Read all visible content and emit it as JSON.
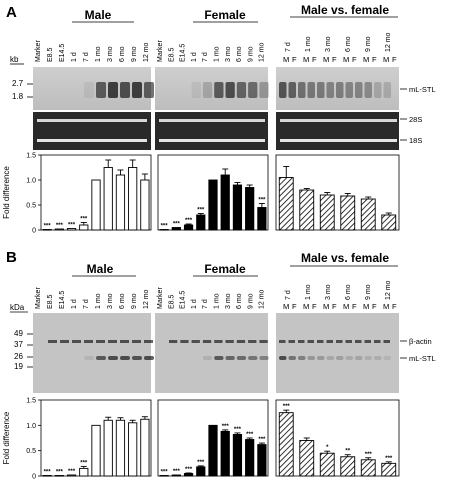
{
  "panels": [
    {
      "letter": "A",
      "size_unit": "kb",
      "size_markers": [
        "2.7",
        "1.8"
      ],
      "band_labels": [
        "mL-STL",
        "28S",
        "18S"
      ],
      "groups": [
        {
          "title": "Male",
          "lanes": [
            "Marker",
            "E8.5",
            "E14.5",
            "1 d",
            "7 d",
            "1 mo",
            "3 mo",
            "6 mo",
            "9 mo",
            "12 mo"
          ]
        },
        {
          "title": "Female",
          "lanes": [
            "Marker",
            "E8.5",
            "E14.5",
            "1 d",
            "7 d",
            "1 mo",
            "3 mo",
            "6 mo",
            "9 mo",
            "12 mo"
          ]
        },
        {
          "title": "Male vs. female",
          "ages": [
            "7 d",
            "1 mo",
            "3 mo",
            "6 mo",
            "9 mo",
            "12 mo"
          ],
          "sex_labels": [
            "M",
            "F"
          ]
        }
      ]
    },
    {
      "letter": "B",
      "size_unit": "kDa",
      "size_markers": [
        "49",
        "37",
        "26",
        "19"
      ],
      "band_labels": [
        "β-actin",
        "mL-STL"
      ],
      "groups": [
        {
          "title": "Male",
          "lanes": [
            "Marker",
            "E8.5",
            "E14.5",
            "1 d",
            "7 d",
            "1 mo",
            "3 mo",
            "6 mo",
            "9 mo",
            "12 mo"
          ]
        },
        {
          "title": "Female",
          "lanes": [
            "Marker",
            "E8.5",
            "E14.5",
            "1 d",
            "7 d",
            "1 mo",
            "3 mo",
            "6 mo",
            "9 mo",
            "12 mo"
          ]
        },
        {
          "title": "Male vs. female",
          "ages": [
            "7 d",
            "1 mo",
            "3 mo",
            "6 mo",
            "9 mo",
            "12 mo"
          ],
          "sex_labels": [
            "M",
            "F"
          ]
        }
      ]
    }
  ],
  "chart_data": [
    {
      "type": "bar",
      "panel": "A",
      "group": "Male",
      "fill": "white",
      "categories": [
        "E8.5",
        "E14.5",
        "1 d",
        "7 d",
        "1 mo",
        "3 mo",
        "6 mo",
        "9 mo",
        "12 mo"
      ],
      "values": [
        0.01,
        0.02,
        0.03,
        0.1,
        1.0,
        1.25,
        1.1,
        1.25,
        1.0
      ],
      "errors": [
        0.0,
        0.0,
        0.0,
        0.05,
        0.0,
        0.15,
        0.1,
        0.15,
        0.12
      ],
      "stars": [
        "***",
        "***",
        "***",
        "***",
        "",
        "",
        "",
        "",
        ""
      ],
      "ylabel": "Fold difference",
      "ylim": [
        0,
        1.5
      ],
      "yticks": [
        0,
        0.5,
        1.0,
        1.5
      ]
    },
    {
      "type": "bar",
      "panel": "A",
      "group": "Female",
      "fill": "black",
      "categories": [
        "E8.5",
        "E14.5",
        "1 d",
        "7 d",
        "1 mo",
        "3 mo",
        "6 mo",
        "9 mo",
        "12 mo"
      ],
      "values": [
        0.01,
        0.05,
        0.1,
        0.3,
        1.0,
        1.1,
        0.9,
        0.85,
        0.45
      ],
      "errors": [
        0.0,
        0.0,
        0.02,
        0.03,
        0.0,
        0.12,
        0.05,
        0.05,
        0.08
      ],
      "stars": [
        "***",
        "***",
        "***",
        "***",
        "",
        "",
        "",
        "",
        "***"
      ],
      "ylim": [
        0,
        1.5
      ]
    },
    {
      "type": "bar",
      "panel": "A",
      "group": "Male vs. female",
      "fill": "hatched",
      "categories": [
        "7 d",
        "1 mo",
        "3 mo",
        "6 mo",
        "9 mo",
        "12 mo"
      ],
      "values": [
        1.05,
        0.8,
        0.7,
        0.68,
        0.62,
        0.3
      ],
      "errors": [
        0.22,
        0.03,
        0.05,
        0.05,
        0.04,
        0.04
      ],
      "stars": [
        "",
        "",
        "",
        "",
        "",
        ""
      ],
      "ylim": [
        0,
        1.5
      ]
    },
    {
      "type": "bar",
      "panel": "B",
      "group": "Male",
      "fill": "white",
      "categories": [
        "E8.5",
        "E14.5",
        "1 d",
        "7 d",
        "1 mo",
        "3 mo",
        "6 mo",
        "9 mo",
        "12 mo"
      ],
      "values": [
        0.01,
        0.01,
        0.02,
        0.15,
        1.0,
        1.1,
        1.1,
        1.05,
        1.12
      ],
      "errors": [
        0.0,
        0.0,
        0.0,
        0.04,
        0.0,
        0.06,
        0.05,
        0.05,
        0.05
      ],
      "stars": [
        "***",
        "***",
        "***",
        "***",
        "",
        "",
        "",
        "",
        ""
      ],
      "ylabel": "Fold difference",
      "ylim": [
        0,
        1.5
      ],
      "yticks": [
        0,
        0.5,
        1.0,
        1.5
      ]
    },
    {
      "type": "bar",
      "panel": "B",
      "group": "Female",
      "fill": "black",
      "categories": [
        "E8.5",
        "E14.5",
        "1 d",
        "7 d",
        "1 mo",
        "3 mo",
        "6 mo",
        "9 mo",
        "12 mo"
      ],
      "values": [
        0.01,
        0.02,
        0.05,
        0.18,
        1.0,
        0.88,
        0.82,
        0.72,
        0.62
      ],
      "errors": [
        0.0,
        0.0,
        0.01,
        0.02,
        0.0,
        0.03,
        0.03,
        0.03,
        0.03
      ],
      "stars": [
        "***",
        "***",
        "***",
        "***",
        "",
        "***",
        "***",
        "***",
        "***"
      ],
      "ylim": [
        0,
        1.5
      ]
    },
    {
      "type": "bar",
      "panel": "B",
      "group": "Male vs. female",
      "fill": "hatched",
      "categories": [
        "7 d",
        "1 mo",
        "3 mo",
        "6 mo",
        "9 mo",
        "12 mo"
      ],
      "values": [
        1.25,
        0.7,
        0.45,
        0.38,
        0.32,
        0.25
      ],
      "errors": [
        0.05,
        0.05,
        0.04,
        0.04,
        0.04,
        0.03
      ],
      "stars": [
        "***",
        "",
        "*",
        "**",
        "***",
        "***"
      ],
      "ylim": [
        0,
        1.5
      ]
    }
  ]
}
